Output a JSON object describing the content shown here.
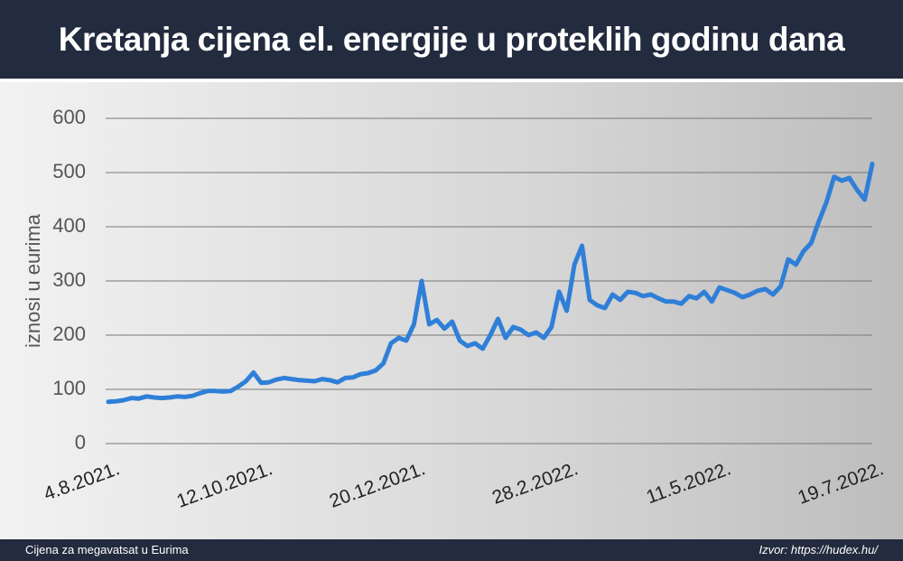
{
  "chart_data": {
    "type": "line",
    "title": "Kretanja cijena el. energije u proteklih godinu dana",
    "y_label": "iznosi u eurima",
    "categories": [
      "4.8.2021.",
      null,
      null,
      null,
      null,
      null,
      null,
      null,
      null,
      null,
      null,
      null,
      null,
      null,
      null,
      null,
      null,
      null,
      null,
      null,
      "12.10.2021.",
      null,
      null,
      null,
      null,
      null,
      null,
      null,
      null,
      null,
      null,
      null,
      null,
      null,
      null,
      null,
      null,
      null,
      null,
      null,
      "20.12.2021.",
      null,
      null,
      null,
      null,
      null,
      null,
      null,
      null,
      null,
      null,
      null,
      null,
      null,
      null,
      null,
      null,
      null,
      null,
      null,
      "28.2.2022.",
      null,
      null,
      null,
      null,
      null,
      null,
      null,
      null,
      null,
      null,
      null,
      null,
      null,
      null,
      null,
      null,
      null,
      null,
      null,
      "11.5.2022.",
      null,
      null,
      null,
      null,
      null,
      null,
      null,
      null,
      null,
      null,
      null,
      null,
      null,
      null,
      null,
      null,
      null,
      null,
      null,
      "19.7.2022."
    ],
    "values": [
      77,
      78,
      80,
      84,
      83,
      87,
      85,
      84,
      85,
      87,
      86,
      88,
      93,
      97,
      97,
      96,
      97,
      105,
      115,
      131,
      112,
      113,
      118,
      121,
      119,
      117,
      116,
      115,
      119,
      117,
      113,
      121,
      122,
      128,
      130,
      135,
      148,
      185,
      195,
      190,
      220,
      300,
      220,
      228,
      212,
      225,
      190,
      180,
      185,
      175,
      200,
      230,
      195,
      215,
      210,
      200,
      205,
      195,
      215,
      280,
      245,
      330,
      365,
      265,
      255,
      250,
      275,
      265,
      280,
      278,
      272,
      275,
      268,
      262,
      262,
      258,
      272,
      268,
      280,
      262,
      288,
      283,
      278,
      270,
      275,
      282,
      285,
      275,
      290,
      340,
      330,
      355,
      370,
      410,
      445,
      492,
      485,
      490,
      468,
      450,
      516
    ],
    "color": "#2f7fd8",
    "ylim": [
      0,
      600
    ],
    "yticks": [
      0,
      100,
      200,
      300,
      400,
      500,
      600
    ],
    "grid": true
  },
  "footer": {
    "left": "Cijena za megavatsat u Eurima",
    "right": "Izvor: https://hudex.hu/"
  }
}
